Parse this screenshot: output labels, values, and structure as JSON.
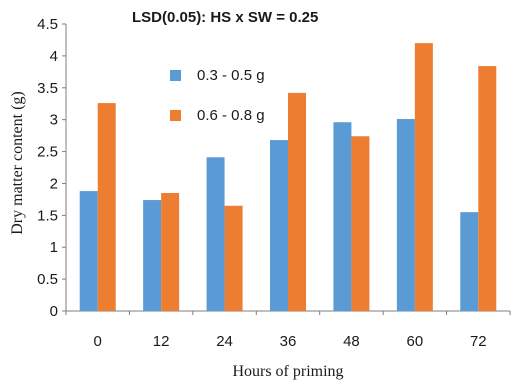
{
  "chart_data": {
    "type": "bar",
    "title": "",
    "annotation": "LSD(0.05): HS x SW = 0.25",
    "xlabel": "Hours of priming",
    "ylabel": "Dry matter content (g)",
    "categories": [
      "0",
      "12",
      "24",
      "36",
      "48",
      "60",
      "72"
    ],
    "ylim": [
      0,
      4.5
    ],
    "yticks": [
      "0",
      "0.5",
      "1",
      "1.5",
      "2",
      "2.5",
      "3",
      "3.5",
      "4",
      "4.5"
    ],
    "grid": false,
    "legend_position": "top-left",
    "series": [
      {
        "name": "0.3 - 0.5 g",
        "color": "#5b9bd5",
        "values": [
          1.88,
          1.74,
          2.41,
          2.68,
          2.96,
          3.01,
          1.55
        ]
      },
      {
        "name": "0.6 - 0.8 g",
        "color": "#ed7d31",
        "values": [
          3.26,
          1.85,
          1.65,
          3.42,
          2.74,
          4.2,
          3.84
        ]
      }
    ]
  }
}
